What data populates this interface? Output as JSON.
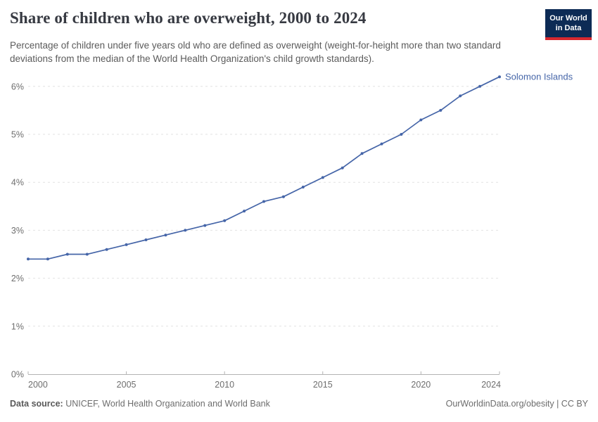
{
  "header": {
    "title": "Share of children who are overweight, 2000 to 2024",
    "subtitle": "Percentage of children under five years old who are defined as overweight (weight-for-height more than two standard deviations from the median of the World Health Organization's child growth standards).",
    "logo": {
      "line1": "Our World",
      "line2": "in Data",
      "bg_color": "#0d2b55",
      "accent_color": "#d7282f"
    }
  },
  "chart_data": {
    "type": "line",
    "title": "Share of children who are overweight, 2000 to 2024",
    "x": [
      2000,
      2001,
      2002,
      2003,
      2004,
      2005,
      2006,
      2007,
      2008,
      2009,
      2010,
      2011,
      2012,
      2013,
      2014,
      2015,
      2016,
      2017,
      2018,
      2019,
      2020,
      2021,
      2022,
      2023,
      2024
    ],
    "series": [
      {
        "name": "Solomon Islands",
        "color": "#4565A8",
        "values": [
          2.4,
          2.4,
          2.5,
          2.5,
          2.6,
          2.7,
          2.8,
          2.9,
          3.0,
          3.1,
          3.2,
          3.4,
          3.6,
          3.7,
          3.9,
          4.1,
          4.3,
          4.6,
          4.8,
          5.0,
          5.3,
          5.5,
          5.8,
          6.0,
          6.2
        ]
      }
    ],
    "xlabel": "",
    "ylabel": "",
    "xlim": [
      2000,
      2024
    ],
    "ylim": [
      0,
      6.2
    ],
    "x_ticks": [
      2000,
      2005,
      2010,
      2015,
      2020,
      2024
    ],
    "y_ticks": {
      "values": [
        0,
        1,
        2,
        3,
        4,
        5,
        6
      ],
      "labels": [
        "0%",
        "1%",
        "2%",
        "3%",
        "4%",
        "5%",
        "6%"
      ]
    },
    "grid": "horizontal-dashed",
    "legend": "line-end-label"
  },
  "footer": {
    "source_label": "Data source:",
    "source_value": " UNICEF, World Health Organization and World Bank",
    "link": "OurWorldinData.org/obesity | CC BY"
  }
}
